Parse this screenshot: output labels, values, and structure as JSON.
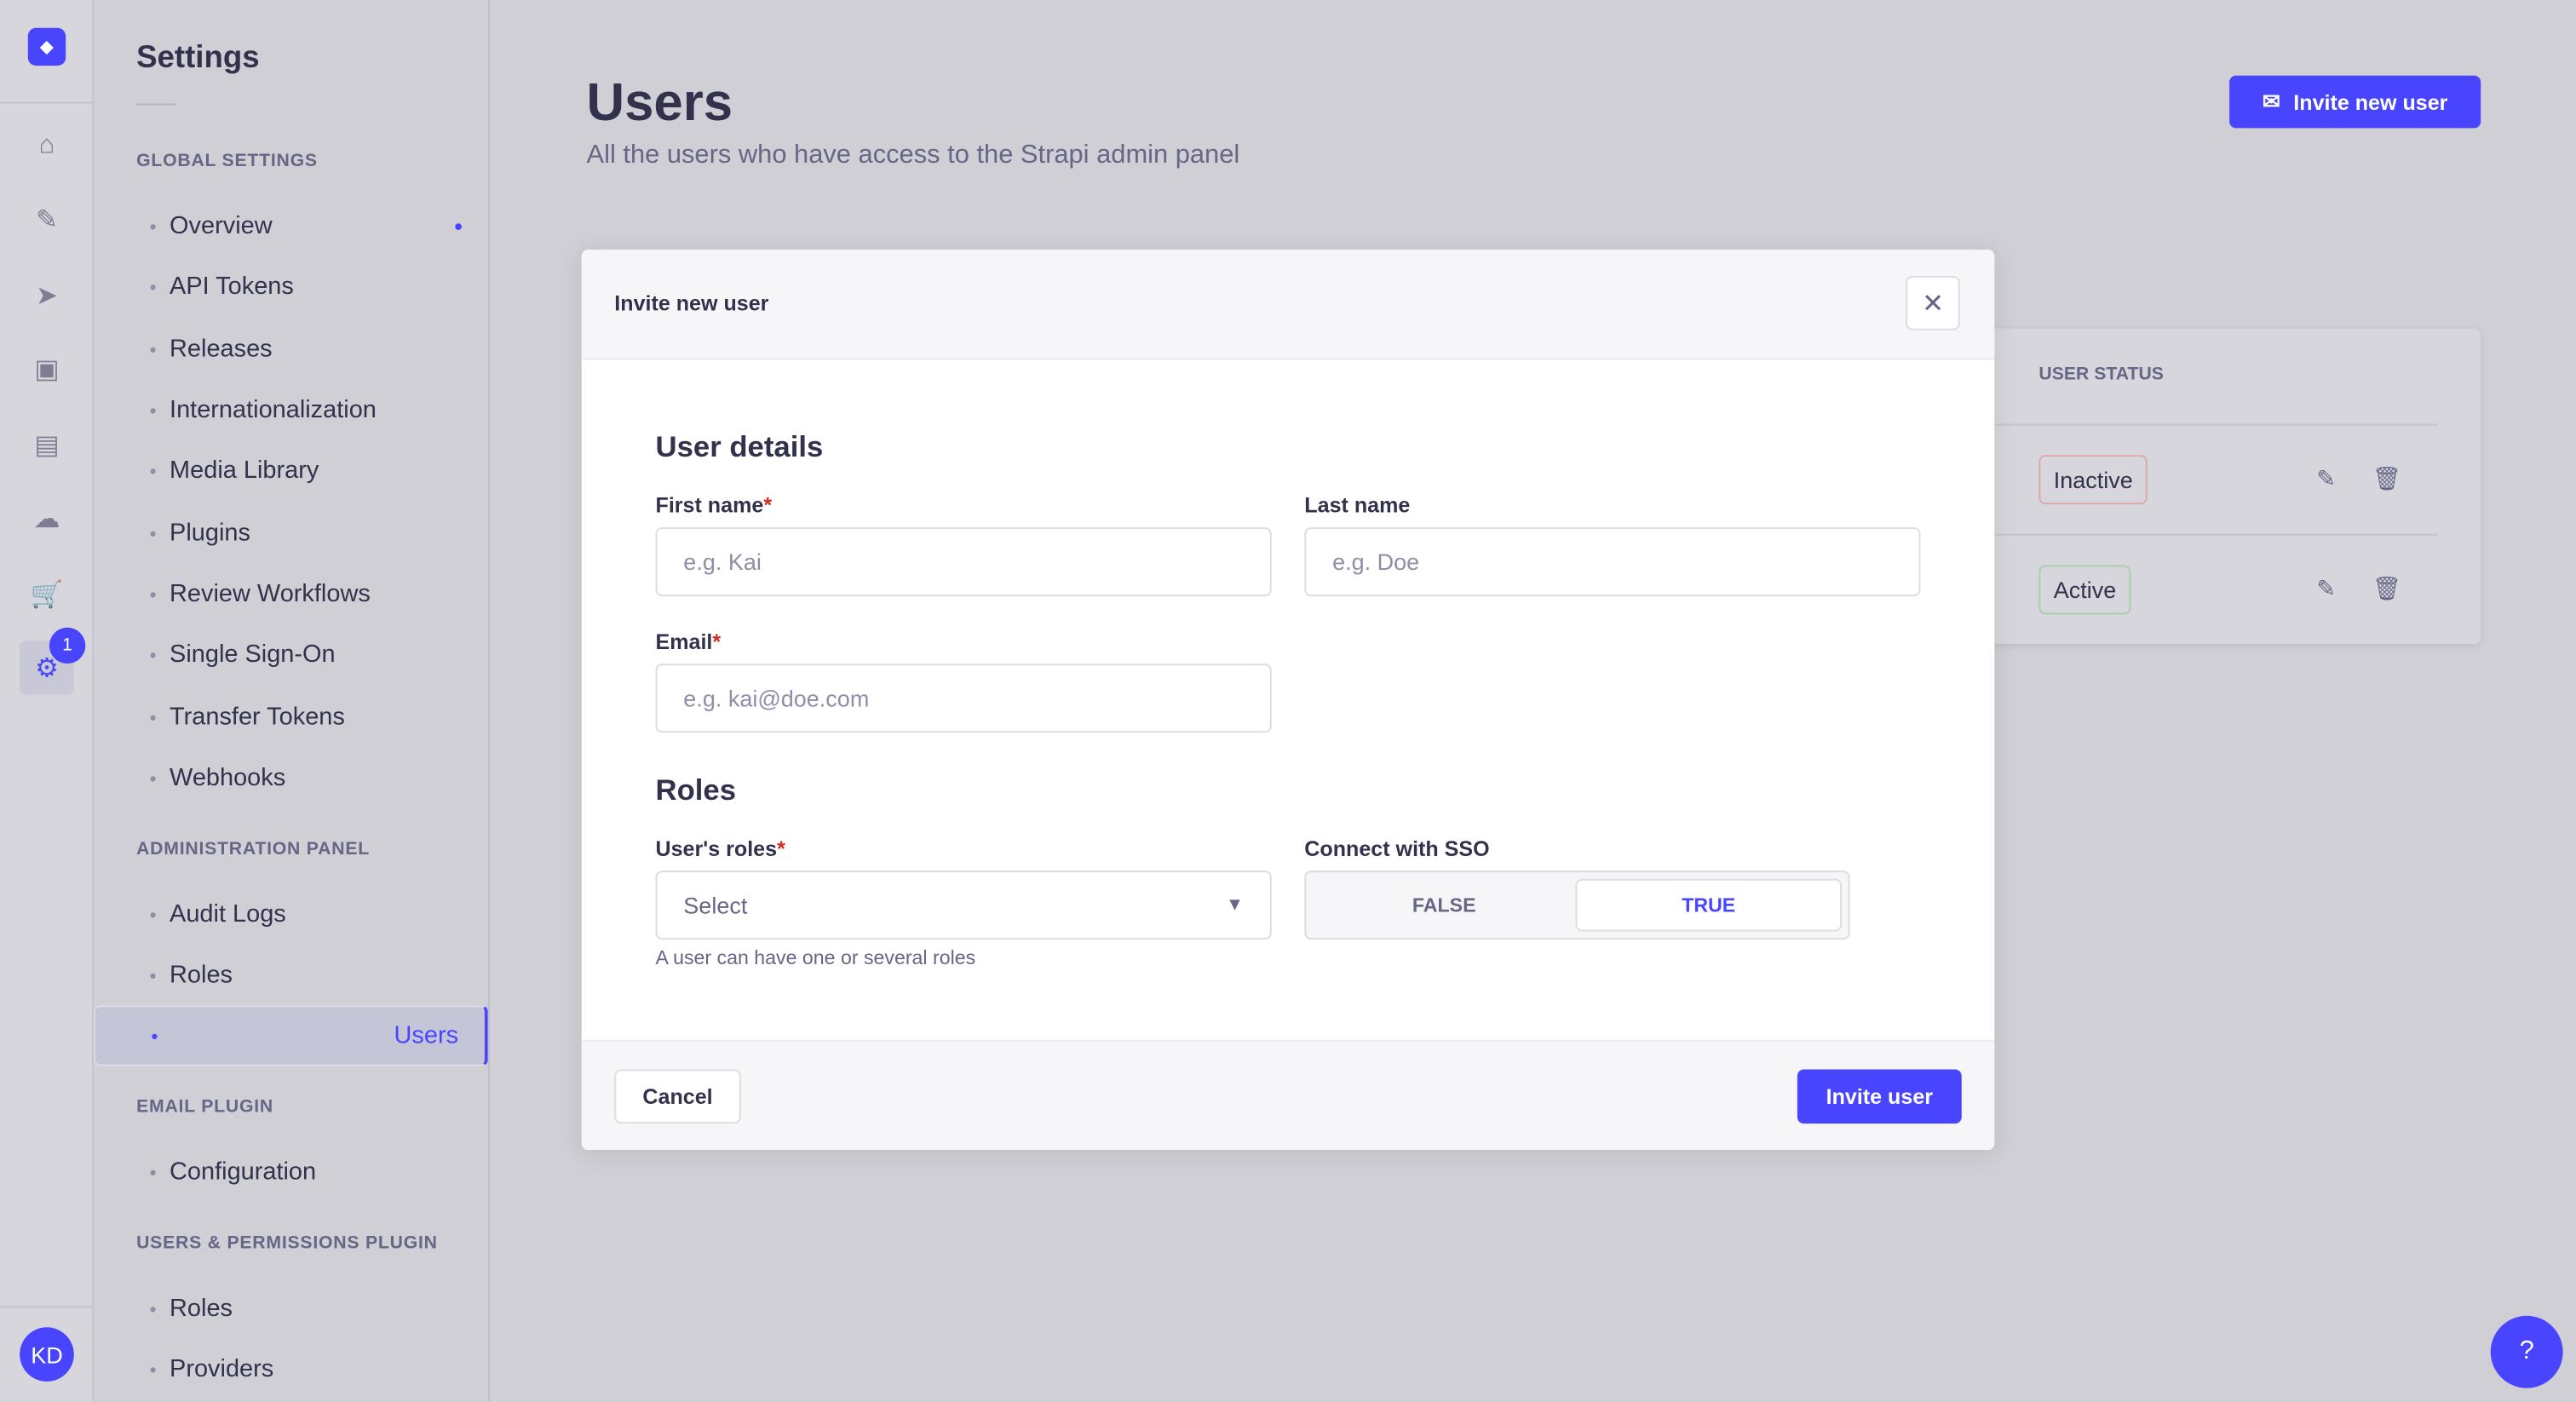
{
  "rail": {
    "logo_icon": "strapi-logo",
    "icons": [
      "home-icon",
      "feather-icon",
      "send-icon",
      "media-icon",
      "layout-icon",
      "cloud-icon",
      "cart-icon",
      "gear-icon"
    ],
    "notification_count": "1",
    "avatar_initials": "KD"
  },
  "sidebar": {
    "title": "Settings",
    "sections": [
      {
        "label": "GLOBAL SETTINGS",
        "items": [
          "Overview",
          "API Tokens",
          "Releases",
          "Internationalization",
          "Media Library",
          "Plugins",
          "Review Workflows",
          "Single Sign-On",
          "Transfer Tokens",
          "Webhooks"
        ]
      },
      {
        "label": "ADMINISTRATION PANEL",
        "items": [
          "Audit Logs",
          "Roles",
          "Users"
        ]
      },
      {
        "label": "EMAIL PLUGIN",
        "items": [
          "Configuration"
        ]
      },
      {
        "label": "USERS & PERMISSIONS PLUGIN",
        "items": [
          "Roles",
          "Providers"
        ]
      }
    ],
    "selected": "Users"
  },
  "main": {
    "title": "Users",
    "subtitle": "All the users who have access to the Strapi admin panel",
    "invite_button": "Invite new user",
    "table": {
      "column": "USER STATUS",
      "rows": [
        {
          "status": "Inactive"
        },
        {
          "status": "Active"
        }
      ]
    }
  },
  "modal": {
    "title": "Invite new user",
    "user_details_heading": "User details",
    "first_name": {
      "label": "First name",
      "placeholder": "e.g. Kai"
    },
    "last_name": {
      "label": "Last name",
      "placeholder": "e.g. Doe"
    },
    "email": {
      "label": "Email",
      "placeholder": "e.g. kai@doe.com"
    },
    "roles_heading": "Roles",
    "roles": {
      "label": "User's roles",
      "value": "Select",
      "hint": "A user can have one or several roles"
    },
    "sso": {
      "label": "Connect with SSO",
      "options": [
        "FALSE",
        "TRUE"
      ],
      "selected": "TRUE"
    },
    "cancel": "Cancel",
    "submit": "Invite user"
  },
  "colors": {
    "primary": "#4945ff",
    "danger": "#d02b20"
  }
}
